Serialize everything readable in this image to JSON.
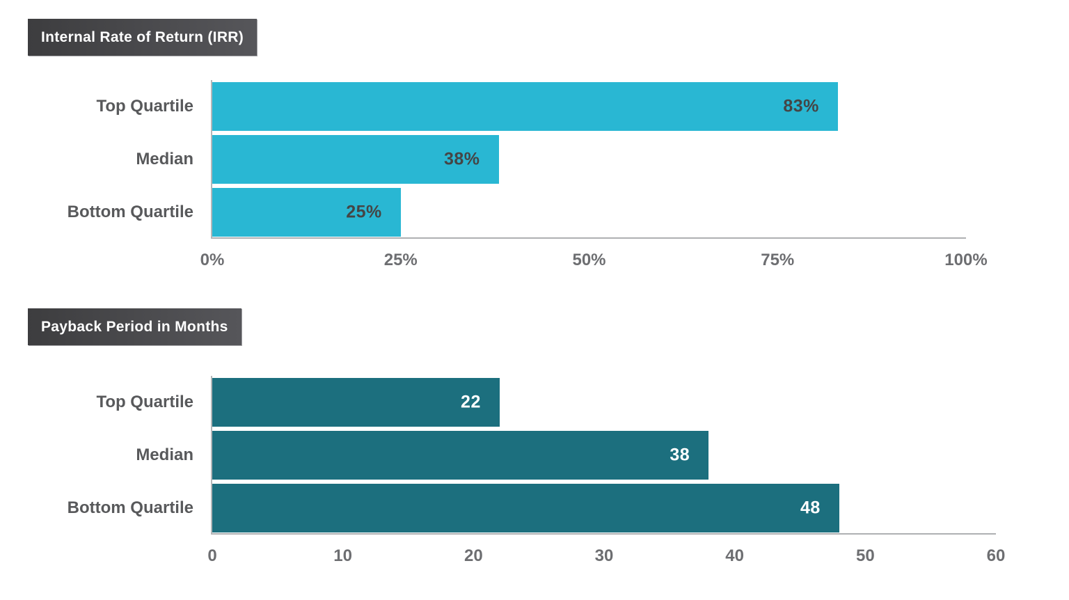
{
  "colors": {
    "header_bg": "#4a4a4d",
    "header_text": "#ffffff",
    "label_text": "#58595b",
    "tick_text": "#6d6e71",
    "axis_line": "#b0b2b4",
    "irr_bar": "#29b7d3",
    "irr_value_text": "#454545",
    "payback_bar": "#1c6f7e",
    "payback_value_text": "#ffffff"
  },
  "chart_data": [
    {
      "type": "bar",
      "orientation": "horizontal",
      "title": "Internal Rate of Return (IRR)",
      "categories": [
        "Top Quartile",
        "Median",
        "Bottom Quartile"
      ],
      "values": [
        83,
        38,
        25
      ],
      "value_labels": [
        "83%",
        "38%",
        "25%"
      ],
      "xlabel": "",
      "ylabel": "",
      "xlim": [
        0,
        100
      ],
      "tick_values": [
        0,
        25,
        50,
        75,
        100
      ],
      "tick_labels": [
        "0%",
        "25%",
        "50%",
        "75%",
        "100%"
      ],
      "grid": false,
      "legend": false,
      "bar_color": "#29b7d3",
      "value_color": "#454545"
    },
    {
      "type": "bar",
      "orientation": "horizontal",
      "title": "Payback Period in Months",
      "categories": [
        "Top Quartile",
        "Median",
        "Bottom Quartile"
      ],
      "values": [
        22,
        38,
        48
      ],
      "value_labels": [
        "22",
        "38",
        "48"
      ],
      "xlabel": "",
      "ylabel": "",
      "xlim": [
        0,
        60
      ],
      "tick_values": [
        0,
        10,
        20,
        30,
        40,
        50,
        60
      ],
      "tick_labels": [
        "0",
        "10",
        "20",
        "30",
        "40",
        "50",
        "60"
      ],
      "grid": false,
      "legend": false,
      "bar_color": "#1c6f7e",
      "value_color": "#ffffff"
    }
  ]
}
